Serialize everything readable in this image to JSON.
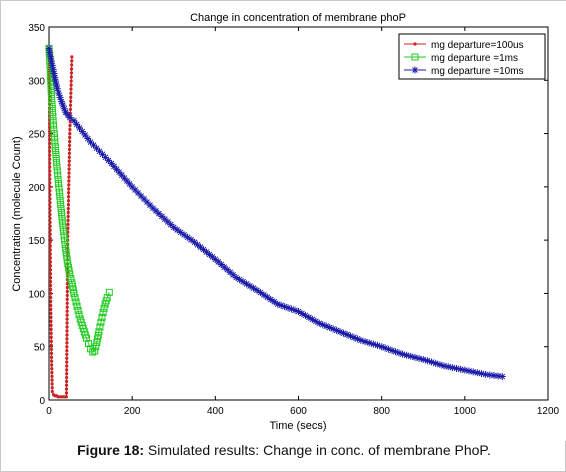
{
  "chart_data": {
    "type": "line",
    "title": "Change in concentration of membrane phoP",
    "xlabel": "Time (secs)",
    "ylabel": "Concentration (molecule Count)",
    "xlim": [
      0,
      1200
    ],
    "ylim": [
      0,
      350
    ],
    "xticks": [
      0,
      200,
      400,
      600,
      800,
      1000,
      1200
    ],
    "yticks": [
      0,
      50,
      100,
      150,
      200,
      250,
      300,
      350
    ],
    "grid": false,
    "legend_position": "top-right",
    "series": [
      {
        "name": "mg departure=100us",
        "color": "#cc2222",
        "marker": "dot",
        "x": [
          0,
          1,
          2,
          4,
          6,
          8,
          11,
          14,
          18,
          22,
          26,
          30,
          34,
          38,
          42,
          43,
          45,
          50,
          55
        ],
        "y": [
          330,
          300,
          200,
          100,
          40,
          8,
          5,
          4,
          4,
          3,
          3,
          3,
          3,
          3,
          3,
          50,
          150,
          250,
          322
        ]
      },
      {
        "name": "mg departure =1ms",
        "color": "#22cc22",
        "marker": "square",
        "x": [
          0,
          3,
          6,
          10,
          15,
          20,
          25,
          30,
          35,
          40,
          45,
          50,
          55,
          60,
          65,
          70,
          75,
          80,
          85,
          90,
          95,
          100,
          105,
          110,
          115,
          120,
          125,
          130,
          135,
          140,
          145
        ],
        "y": [
          330,
          310,
          285,
          262,
          238,
          215,
          195,
          176,
          158,
          142,
          128,
          118,
          110,
          100,
          92,
          84,
          76,
          70,
          64,
          58,
          53,
          48,
          45,
          46,
          54,
          64,
          73,
          82,
          90,
          96,
          101
        ]
      },
      {
        "name": "mg departure =10ms",
        "color": "#1a1aa8",
        "marker": "star",
        "x": [
          0,
          10,
          20,
          30,
          40,
          50,
          60,
          80,
          100,
          150,
          200,
          250,
          300,
          350,
          400,
          450,
          500,
          550,
          600,
          650,
          700,
          750,
          800,
          850,
          900,
          950,
          1000,
          1050,
          1090
        ],
        "y": [
          330,
          310,
          292,
          280,
          270,
          265,
          262,
          252,
          242,
          222,
          200,
          180,
          162,
          148,
          132,
          115,
          103,
          90,
          83,
          72,
          64,
          56,
          50,
          43,
          38,
          32,
          28,
          24,
          22
        ]
      }
    ]
  },
  "caption": {
    "label": "Figure 18:",
    "text": " Simulated results: Change in conc. of membrane PhoP."
  }
}
